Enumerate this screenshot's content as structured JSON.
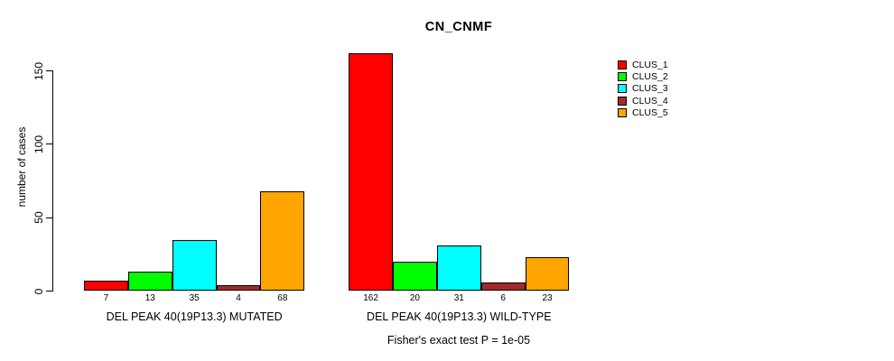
{
  "chart_data": {
    "type": "bar",
    "title": "CN_CNMF",
    "ylabel": "number of cases",
    "xlabel": "",
    "ylim": [
      0,
      162
    ],
    "yticks": [
      0,
      50,
      100,
      150
    ],
    "grid": false,
    "legend_position": "top-right",
    "bar_value_labels": true,
    "categories": [
      "DEL PEAK 40(19P13.3) MUTATED",
      "DEL PEAK 40(19P13.3) WILD-TYPE"
    ],
    "series": [
      {
        "name": "CLUS_1",
        "color": "#ff0000",
        "values": [
          7,
          162
        ]
      },
      {
        "name": "CLUS_2",
        "color": "#00ff00",
        "values": [
          13,
          20
        ]
      },
      {
        "name": "CLUS_3",
        "color": "#00ffff",
        "values": [
          35,
          31
        ]
      },
      {
        "name": "CLUS_4",
        "color": "#a52a2a",
        "values": [
          4,
          6
        ]
      },
      {
        "name": "CLUS_5",
        "color": "#ffa500",
        "values": [
          68,
          23
        ]
      }
    ],
    "caption": "Fisher's exact test P = 1e-05"
  }
}
